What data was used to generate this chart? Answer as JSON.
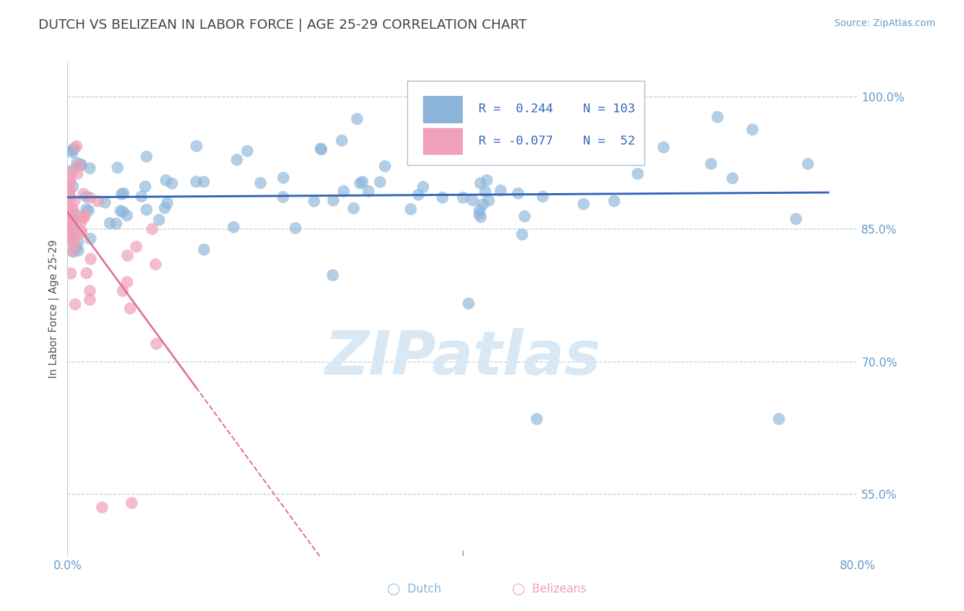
{
  "title": "DUTCH VS BELIZEAN IN LABOR FORCE | AGE 25-29 CORRELATION CHART",
  "source": "Source: ZipAtlas.com",
  "ylabel": "In Labor Force | Age 25-29",
  "xlim": [
    0.0,
    0.8
  ],
  "ylim": [
    0.48,
    1.04
  ],
  "xticks": [
    0.0,
    0.1,
    0.2,
    0.3,
    0.4,
    0.5,
    0.6,
    0.7,
    0.8
  ],
  "yticks": [
    0.55,
    0.7,
    0.85,
    1.0
  ],
  "yticklabels": [
    "55.0%",
    "70.0%",
    "85.0%",
    "100.0%"
  ],
  "blue_R": 0.244,
  "blue_N": 103,
  "pink_R": -0.077,
  "pink_N": 52,
  "blue_color": "#8BB4D8",
  "pink_color": "#F0A0B8",
  "blue_line_color": "#3366BB",
  "pink_line_color": "#E07090",
  "title_color": "#444444",
  "axis_color": "#6699CC",
  "grid_color": "#BBCCDD",
  "background_color": "#FFFFFF",
  "watermark_color": "#D8E8F4",
  "legend_text_color": "#3366BB",
  "legend_border_color": "#AABBCC"
}
